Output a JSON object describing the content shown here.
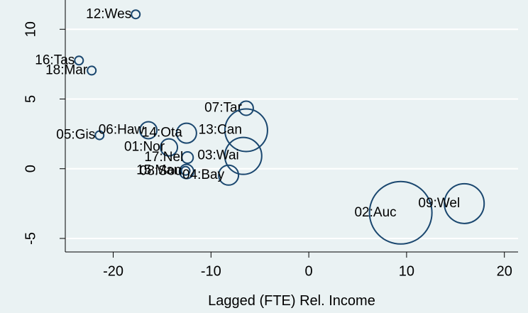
{
  "chart_data": {
    "type": "scatter",
    "x_label": "Lagged (FTE) Rel. Income",
    "labels": [
      "12:Wes",
      "16:Tas",
      "18:Mar",
      "07:Tar",
      "05:Gis",
      "06:Haw",
      "14:Ota",
      "13:Can",
      "01:Nor",
      "17:Nel",
      "03:Wai",
      "08:Sou",
      "15:Man",
      "04:Bay",
      "02:Auc",
      "09:Wel"
    ],
    "x": [
      -17.7,
      -23.5,
      -22.2,
      -6.4,
      -21.4,
      -16.4,
      -12.5,
      -6.4,
      -14.3,
      -12.4,
      -6.7,
      -12.5,
      -12.6,
      -8.2,
      9.4,
      15.9
    ],
    "y": [
      11.07,
      7.76,
      7.04,
      4.34,
      2.4,
      2.76,
      2.55,
      2.76,
      1.53,
      0.8,
      0.92,
      -0.2,
      -0.15,
      -0.46,
      -3.16,
      -2.5
    ],
    "sizes": [
      9,
      9,
      9,
      25,
      9,
      36,
      49,
      225,
      36,
      16,
      169,
      25,
      9,
      49,
      484,
      196
    ],
    "color": "#1a476f",
    "label_color": "#90353b",
    "xlim": [
      -24.9,
      21.4
    ],
    "ylim": [
      -5.97,
      12.1
    ],
    "xticks": [
      -20,
      -10,
      0,
      10,
      20
    ],
    "yticks": [
      -5,
      0,
      5,
      10
    ],
    "grid": true
  }
}
